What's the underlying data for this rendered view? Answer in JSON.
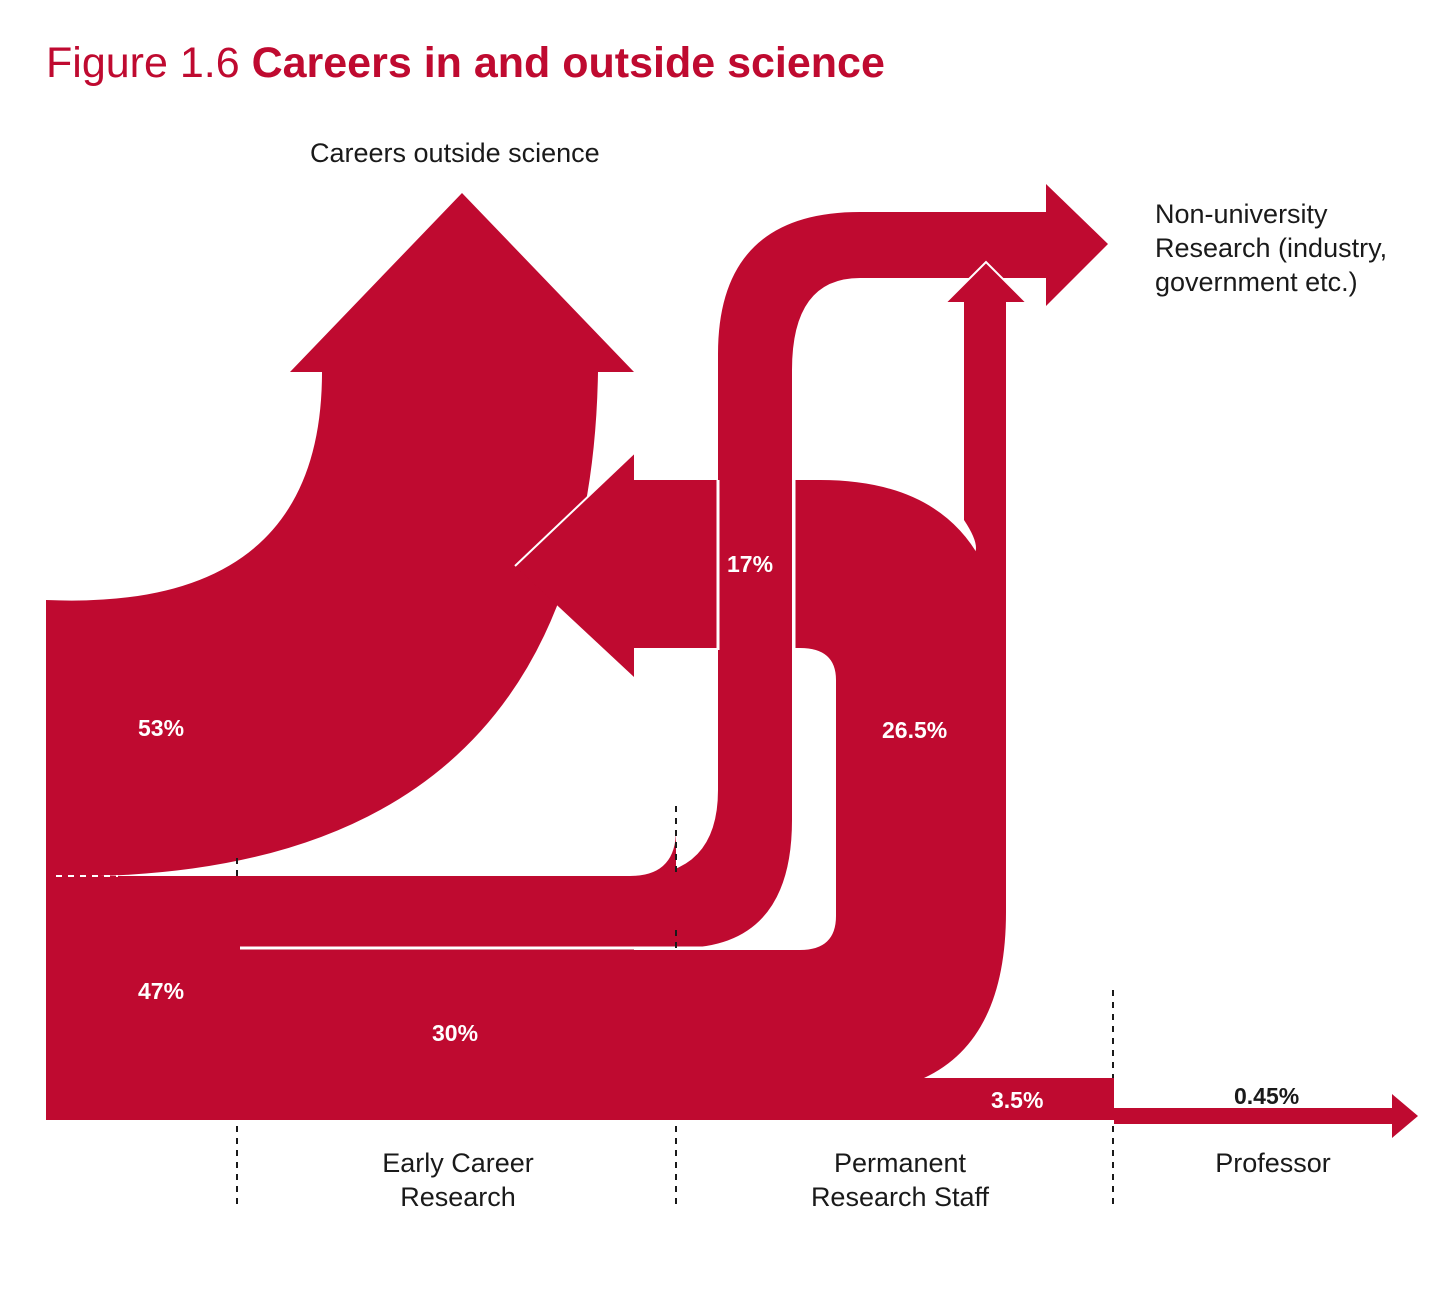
{
  "title": {
    "number": "Figure 1.6",
    "text": "Careers in and outside science"
  },
  "destinations": {
    "outside_science": "Careers outside science",
    "non_university": [
      "Non-university",
      "Research (industry,",
      "government etc.)"
    ]
  },
  "stages": {
    "early_career": [
      "Early Career",
      "Research"
    ],
    "permanent": [
      "Permanent",
      "Research Staff"
    ],
    "professor": "Professor"
  },
  "flows": {
    "to_outside_from_start": "53%",
    "into_early_career": "47%",
    "early_to_non_university": "17%",
    "early_to_permanent": "30%",
    "permanent_to_other": "26.5%",
    "permanent_to_professor": "3.5%",
    "professor": "0.45%"
  },
  "colors": {
    "flow": "#bf0a30",
    "title": "#bf0a30",
    "text": "#1a1a1a"
  }
}
